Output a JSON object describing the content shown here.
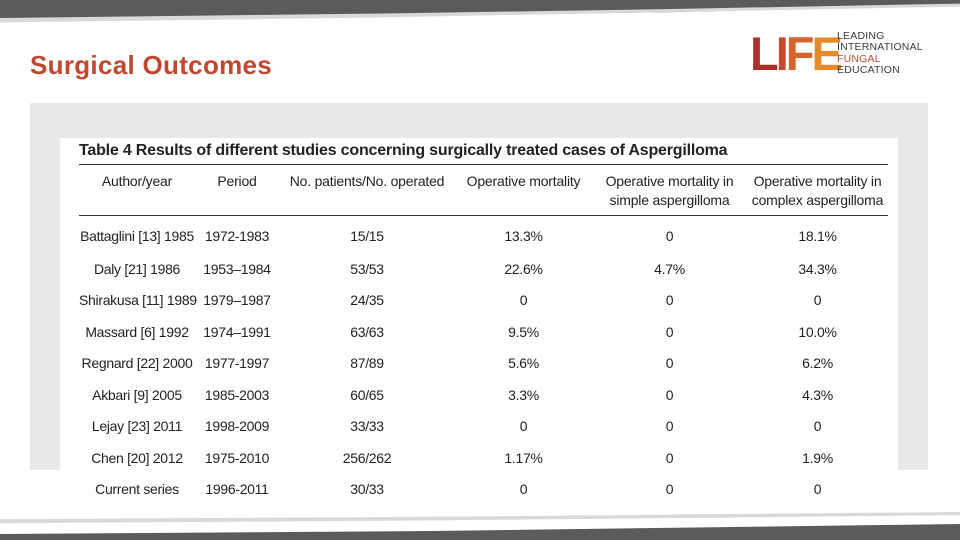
{
  "slide": {
    "title": "Surgical Outcomes"
  },
  "logo": {
    "mark": [
      "L",
      "I",
      "F",
      "E"
    ],
    "lines": [
      "LEADING",
      "INTERNATIONAL",
      "FUNGAL",
      "EDUCATION"
    ]
  },
  "table": {
    "caption": "Table 4 Results of different studies concerning surgically treated cases of Aspergilloma",
    "headers": [
      "Author/year",
      "Period",
      "No. patients/No. operated",
      "Operative mortality",
      "Operative mortality in simple aspergilloma",
      "Operative mortality in complex aspergilloma"
    ],
    "rows": [
      [
        "Battaglini [13] 1985",
        "1972-1983",
        "15/15",
        "13.3%",
        "0",
        "18.1%"
      ],
      [
        "Daly [21] 1986",
        "1953–1984",
        "53/53",
        "22.6%",
        "4.7%",
        "34.3%"
      ],
      [
        "Shirakusa [11] 1989",
        "1979–1987",
        "24/35",
        "0",
        "0",
        "0"
      ],
      [
        "Massard [6] 1992",
        "1974–1991",
        "63/63",
        "9.5%",
        "0",
        "10.0%"
      ],
      [
        "Regnard [22] 2000",
        "1977-1997",
        "87/89",
        "5.6%",
        "0",
        "6.2%"
      ],
      [
        "Akbari [9] 2005",
        "1985-2003",
        "60/65",
        "3.3%",
        "0",
        "4.3%"
      ],
      [
        "Lejay [23] 2011",
        "1998-2009",
        "33/33",
        "0",
        "0",
        "0"
      ],
      [
        "Chen [20] 2012",
        "1975-2010",
        "256/262",
        "1.17%",
        "0",
        "1.9%"
      ],
      [
        "Current series",
        "1996-2011",
        "30/33",
        "0",
        "0",
        "0"
      ]
    ]
  },
  "colors": {
    "title": "#c0482f",
    "panel": "#e9e9e9",
    "frame_dark": "#5b5b5b",
    "frame_light": "#d9d9d9"
  }
}
